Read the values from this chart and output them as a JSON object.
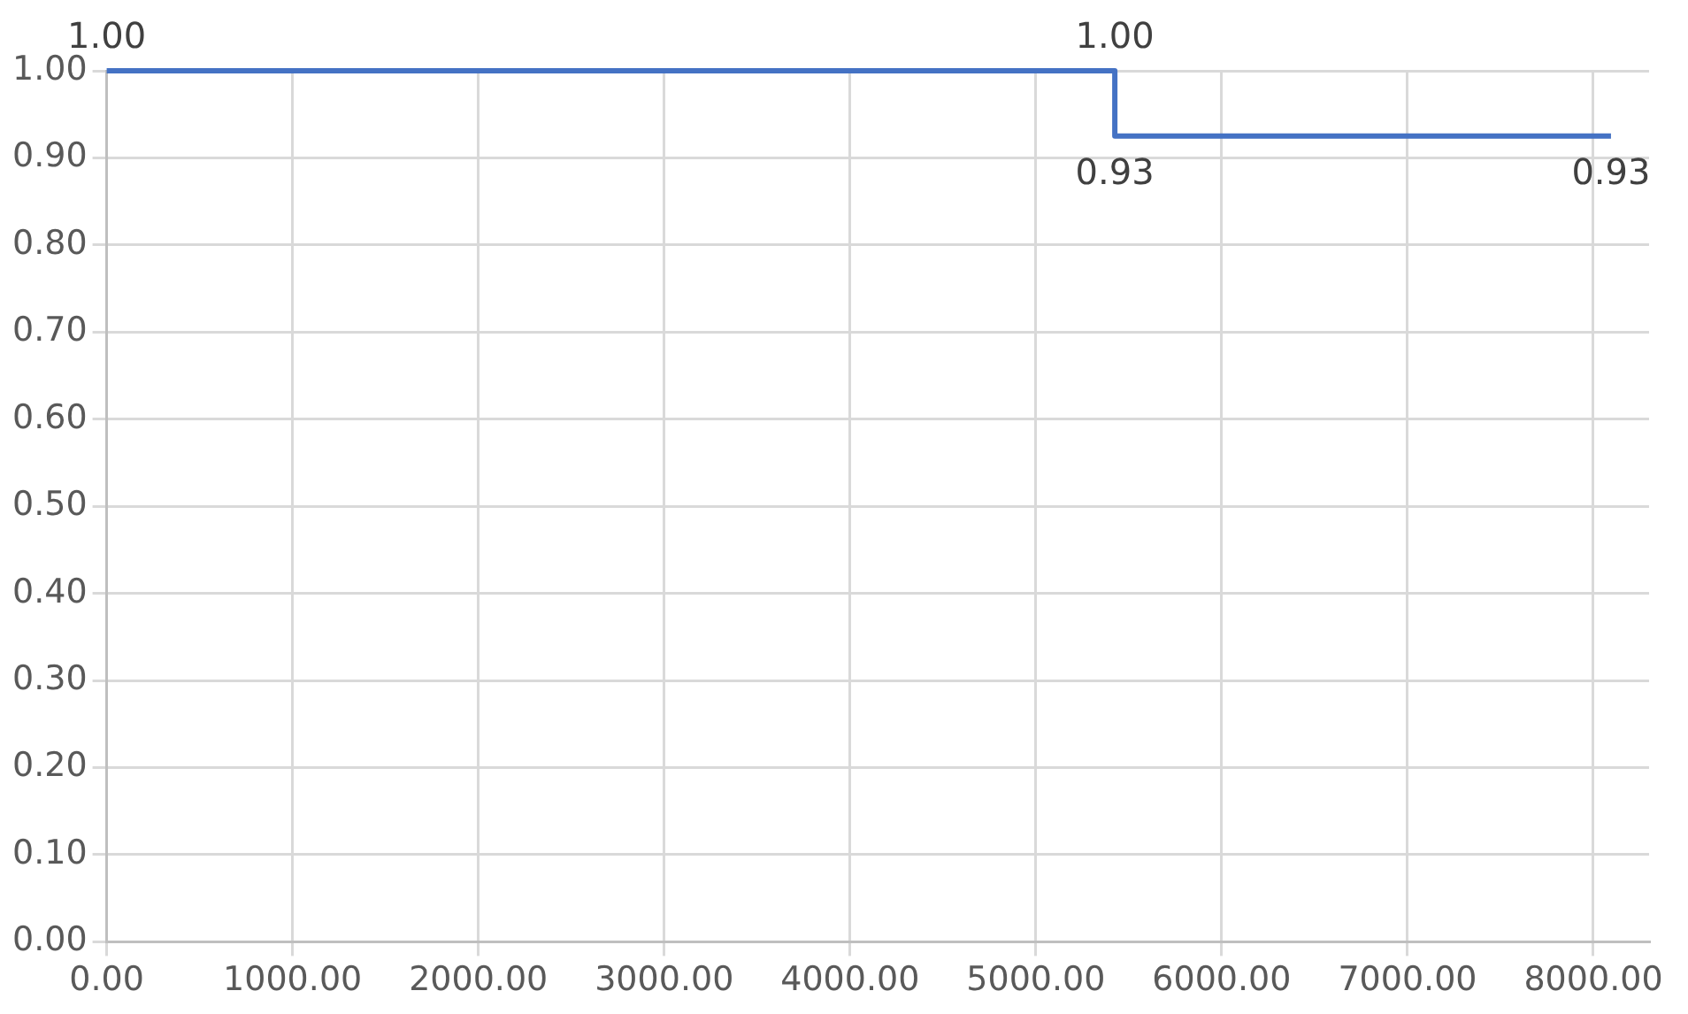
{
  "chart_data": {
    "type": "line",
    "x": [
      0,
      5425,
      5425,
      8095
    ],
    "values": [
      1,
      1,
      0.925,
      0.925
    ],
    "value_labels": [
      "1.00",
      "1.00",
      "0.93",
      "0.93"
    ],
    "color": "#4472c4",
    "xlim": [
      0,
      8300
    ],
    "xticks": [
      {
        "value": 0,
        "label": "0.00"
      },
      {
        "value": 1000,
        "label": "1000.00"
      },
      {
        "value": 2000,
        "label": "2000.00"
      },
      {
        "value": 3000,
        "label": "3000.00"
      },
      {
        "value": 4000,
        "label": "4000.00"
      },
      {
        "value": 5000,
        "label": "5000.00"
      },
      {
        "value": 6000,
        "label": "6000.00"
      },
      {
        "value": 7000,
        "label": "7000.00"
      },
      {
        "value": 8000,
        "label": "8000.00"
      }
    ],
    "ylim": [
      0,
      1
    ],
    "yticks": [
      {
        "value": 0,
        "label": "0.00"
      },
      {
        "value": 0.1,
        "label": "0.10"
      },
      {
        "value": 0.2,
        "label": "0.20"
      },
      {
        "value": 0.3,
        "label": "0.30"
      },
      {
        "value": 0.4,
        "label": "0.40"
      },
      {
        "value": 0.5,
        "label": "0.50"
      },
      {
        "value": 0.6,
        "label": "0.60"
      },
      {
        "value": 0.7,
        "label": "0.70"
      },
      {
        "value": 0.8,
        "label": "0.80"
      },
      {
        "value": 0.9,
        "label": "0.90"
      },
      {
        "value": 1,
        "label": "1.00"
      }
    ],
    "grid": true,
    "marker": "none",
    "legend": false
  }
}
